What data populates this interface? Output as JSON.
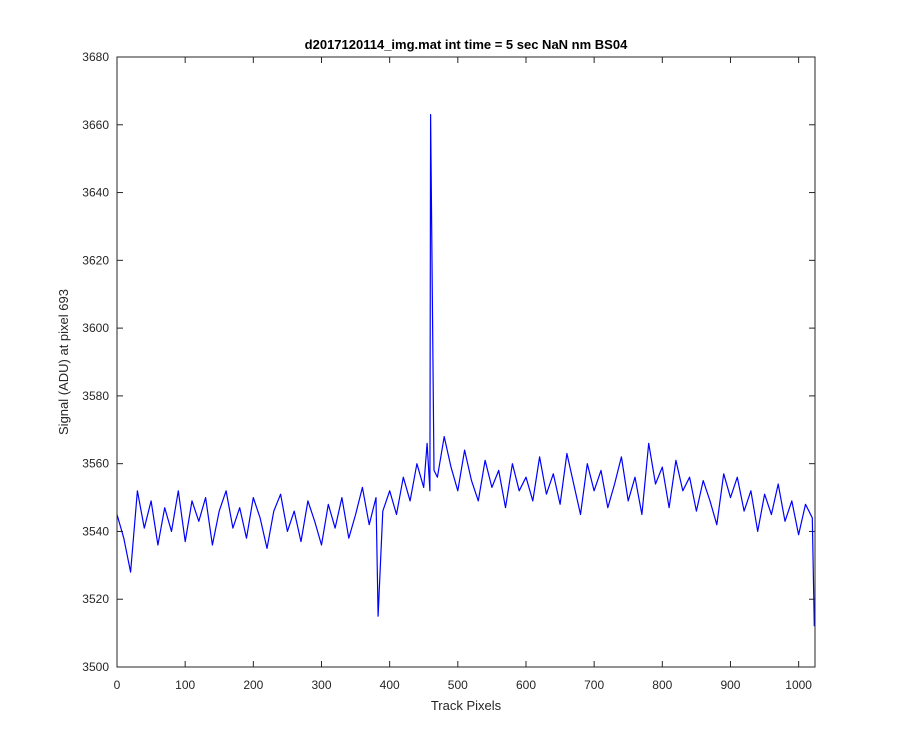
{
  "chart_data": {
    "type": "line",
    "title": "d2017120114_img.mat int time = 5 sec  NaN nm BS04",
    "xlabel": "Track Pixels",
    "ylabel": "Signal (ADU) at pixel 693",
    "xlim": [
      0,
      1024
    ],
    "ylim": [
      3500,
      3680
    ],
    "xticks": [
      0,
      100,
      200,
      300,
      400,
      500,
      600,
      700,
      800,
      900,
      1000
    ],
    "yticks": [
      3500,
      3520,
      3540,
      3560,
      3580,
      3600,
      3620,
      3640,
      3660,
      3680
    ],
    "grid": false,
    "series": [
      {
        "color": "#0000ff",
        "x": [
          0,
          10,
          20,
          30,
          40,
          50,
          60,
          70,
          80,
          90,
          100,
          110,
          120,
          130,
          140,
          150,
          160,
          170,
          180,
          190,
          200,
          210,
          220,
          230,
          240,
          250,
          260,
          270,
          280,
          290,
          300,
          310,
          320,
          330,
          340,
          350,
          360,
          370,
          380,
          383,
          390,
          400,
          410,
          420,
          430,
          440,
          450,
          455,
          459,
          460,
          465,
          470,
          480,
          490,
          500,
          510,
          520,
          530,
          540,
          550,
          560,
          570,
          580,
          590,
          600,
          610,
          620,
          630,
          640,
          650,
          660,
          670,
          680,
          690,
          700,
          710,
          720,
          730,
          740,
          750,
          760,
          770,
          780,
          790,
          800,
          810,
          820,
          830,
          840,
          850,
          860,
          870,
          880,
          890,
          900,
          910,
          920,
          930,
          940,
          950,
          960,
          970,
          980,
          990,
          1000,
          1010,
          1020,
          1023
        ],
        "y": [
          3545,
          3538,
          3528,
          3552,
          3541,
          3549,
          3536,
          3547,
          3540,
          3552,
          3537,
          3549,
          3543,
          3550,
          3536,
          3546,
          3552,
          3541,
          3547,
          3538,
          3550,
          3544,
          3535,
          3546,
          3551,
          3540,
          3546,
          3537,
          3549,
          3543,
          3536,
          3548,
          3541,
          3550,
          3538,
          3545,
          3553,
          3542,
          3550,
          3515,
          3546,
          3552,
          3545,
          3556,
          3549,
          3560,
          3553,
          3566,
          3552,
          3663,
          3558,
          3556,
          3568,
          3559,
          3552,
          3564,
          3555,
          3549,
          3561,
          3553,
          3558,
          3547,
          3560,
          3552,
          3556,
          3549,
          3562,
          3551,
          3557,
          3548,
          3563,
          3554,
          3545,
          3560,
          3552,
          3558,
          3547,
          3554,
          3562,
          3549,
          3556,
          3545,
          3566,
          3554,
          3559,
          3547,
          3561,
          3552,
          3556,
          3546,
          3555,
          3549,
          3542,
          3557,
          3550,
          3556,
          3546,
          3552,
          3540,
          3551,
          3545,
          3554,
          3543,
          3549,
          3539,
          3548,
          3544,
          3512
        ]
      }
    ]
  }
}
